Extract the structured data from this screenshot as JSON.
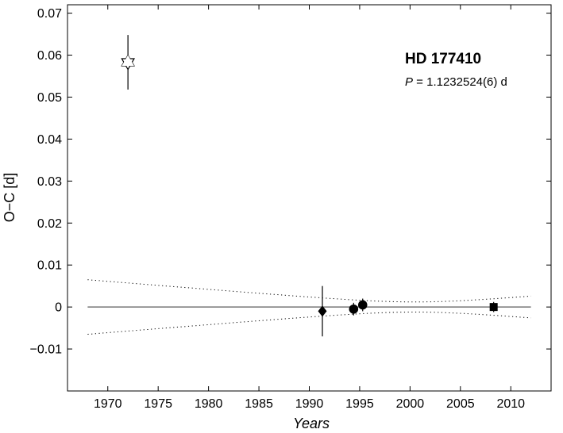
{
  "chart_data": {
    "type": "scatter",
    "title": "HD 177410",
    "period_prefix": "P",
    "period_value": " = 1.1232524(6) d",
    "xlabel": "Years",
    "ylabel": "O−C  [d]",
    "xlim": [
      1966,
      2014
    ],
    "ylim": [
      -0.02,
      0.072
    ],
    "x_ticks": [
      1970,
      1975,
      1980,
      1985,
      1990,
      1995,
      2000,
      2005,
      2010
    ],
    "x_tick_labels": [
      "1970",
      "1975",
      "1980",
      "1985",
      "1990",
      "1995",
      "2000",
      "2005",
      "2010"
    ],
    "y_ticks": [
      -0.01,
      0,
      0.01,
      0.02,
      0.03,
      0.04,
      0.05,
      0.06,
      0.07
    ],
    "y_tick_labels": [
      "−0.01",
      "0",
      "0.01",
      "0.02",
      "0.03",
      "0.04",
      "0.05",
      "0.06",
      "0.07"
    ],
    "reference_line": {
      "y": 0,
      "x_range": [
        1968,
        2012
      ]
    },
    "confidence_band": {
      "x_range": [
        1968,
        2012
      ],
      "center_x": 2000.5,
      "min_halfwidth": 0.0012,
      "upper_end_left": 0.0065,
      "upper_end_right": 0.0026
    },
    "points": [
      {
        "x": 1972.0,
        "y": 0.0583,
        "err": 0.0065,
        "marker": "star"
      },
      {
        "x": 1991.3,
        "y": -0.001,
        "err": 0.006,
        "marker": "diamond"
      },
      {
        "x": 1994.4,
        "y": -0.0005,
        "err": 0.0015,
        "marker": "circle"
      },
      {
        "x": 1995.3,
        "y": 0.0005,
        "err": 0.0015,
        "marker": "circle"
      },
      {
        "x": 2008.3,
        "y": 0.0,
        "err": 0.0012,
        "marker": "square"
      }
    ]
  }
}
